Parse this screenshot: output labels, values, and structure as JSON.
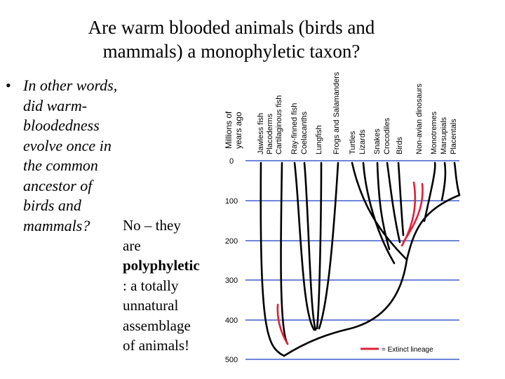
{
  "title": {
    "line1": "Are warm blooded animals (birds and",
    "line2": "mammals) a monophyletic taxon?"
  },
  "bullet": "•",
  "question": {
    "lines": [
      "In other words,",
      "did warm-",
      "bloodedness",
      "evolve once in",
      "the common",
      "ancestor of",
      "birds and",
      "mammals?"
    ]
  },
  "answer": {
    "line1": "No – they",
    "line2": "are",
    "line3": "polyphyletic",
    "line4": ": a totally",
    "line5": "unnatural",
    "line6": "assemblage",
    "line7": "of animals!"
  },
  "tree": {
    "axis_title_line1": "Millions of",
    "axis_title_line2": "years ago",
    "ticks": [
      "0",
      "100",
      "200",
      "300",
      "400",
      "500"
    ],
    "taxa": [
      "Jawless fish",
      "Placoderms",
      "Cartilaginous fish",
      "Ray-finned fish",
      "Coelacanths",
      "Lungfish",
      "Frogs and Salamanders",
      "Turtles",
      "Lizards",
      "Snakes",
      "Crocodiles",
      "Birds",
      "Non-avian dinosaurs",
      "Monotremes",
      "Marsupials",
      "Placentals"
    ],
    "legend_label": "= Extinct lineage",
    "line_color": "#000000",
    "gridline_color": "#3f5fc8",
    "extinct_color": "#e0203a"
  }
}
